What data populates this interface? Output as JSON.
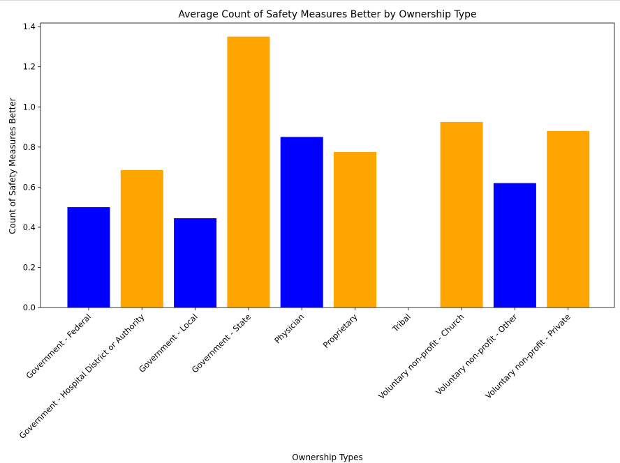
{
  "chart_data": {
    "type": "bar",
    "title": "Average Count of Safety Measures Better by Ownership Type",
    "xlabel": "Ownership Types",
    "ylabel": "Count of Safety Measures Better",
    "categories": [
      "Government - Federal",
      "Government - Hospital District or Authority",
      "Government - Local",
      "Government - State",
      "Physician",
      "Proprietary",
      "Tribal",
      "Voluntary non-profit - Church",
      "Voluntary non-profit - Other",
      "Voluntary non-profit - Private"
    ],
    "values": [
      0.5,
      0.685,
      0.445,
      1.35,
      0.85,
      0.775,
      0.0,
      0.925,
      0.62,
      0.88
    ],
    "colors": [
      "#0000ff",
      "#ffa500",
      "#0000ff",
      "#ffa500",
      "#0000ff",
      "#ffa500",
      "#0000ff",
      "#ffa500",
      "#0000ff",
      "#ffa500"
    ],
    "yticks": [
      "0.0",
      "0.2",
      "0.4",
      "0.6",
      "0.8",
      "1.0",
      "1.2",
      "1.4"
    ],
    "ylim": [
      0,
      1.418
    ],
    "grid": false,
    "legend": "none"
  }
}
